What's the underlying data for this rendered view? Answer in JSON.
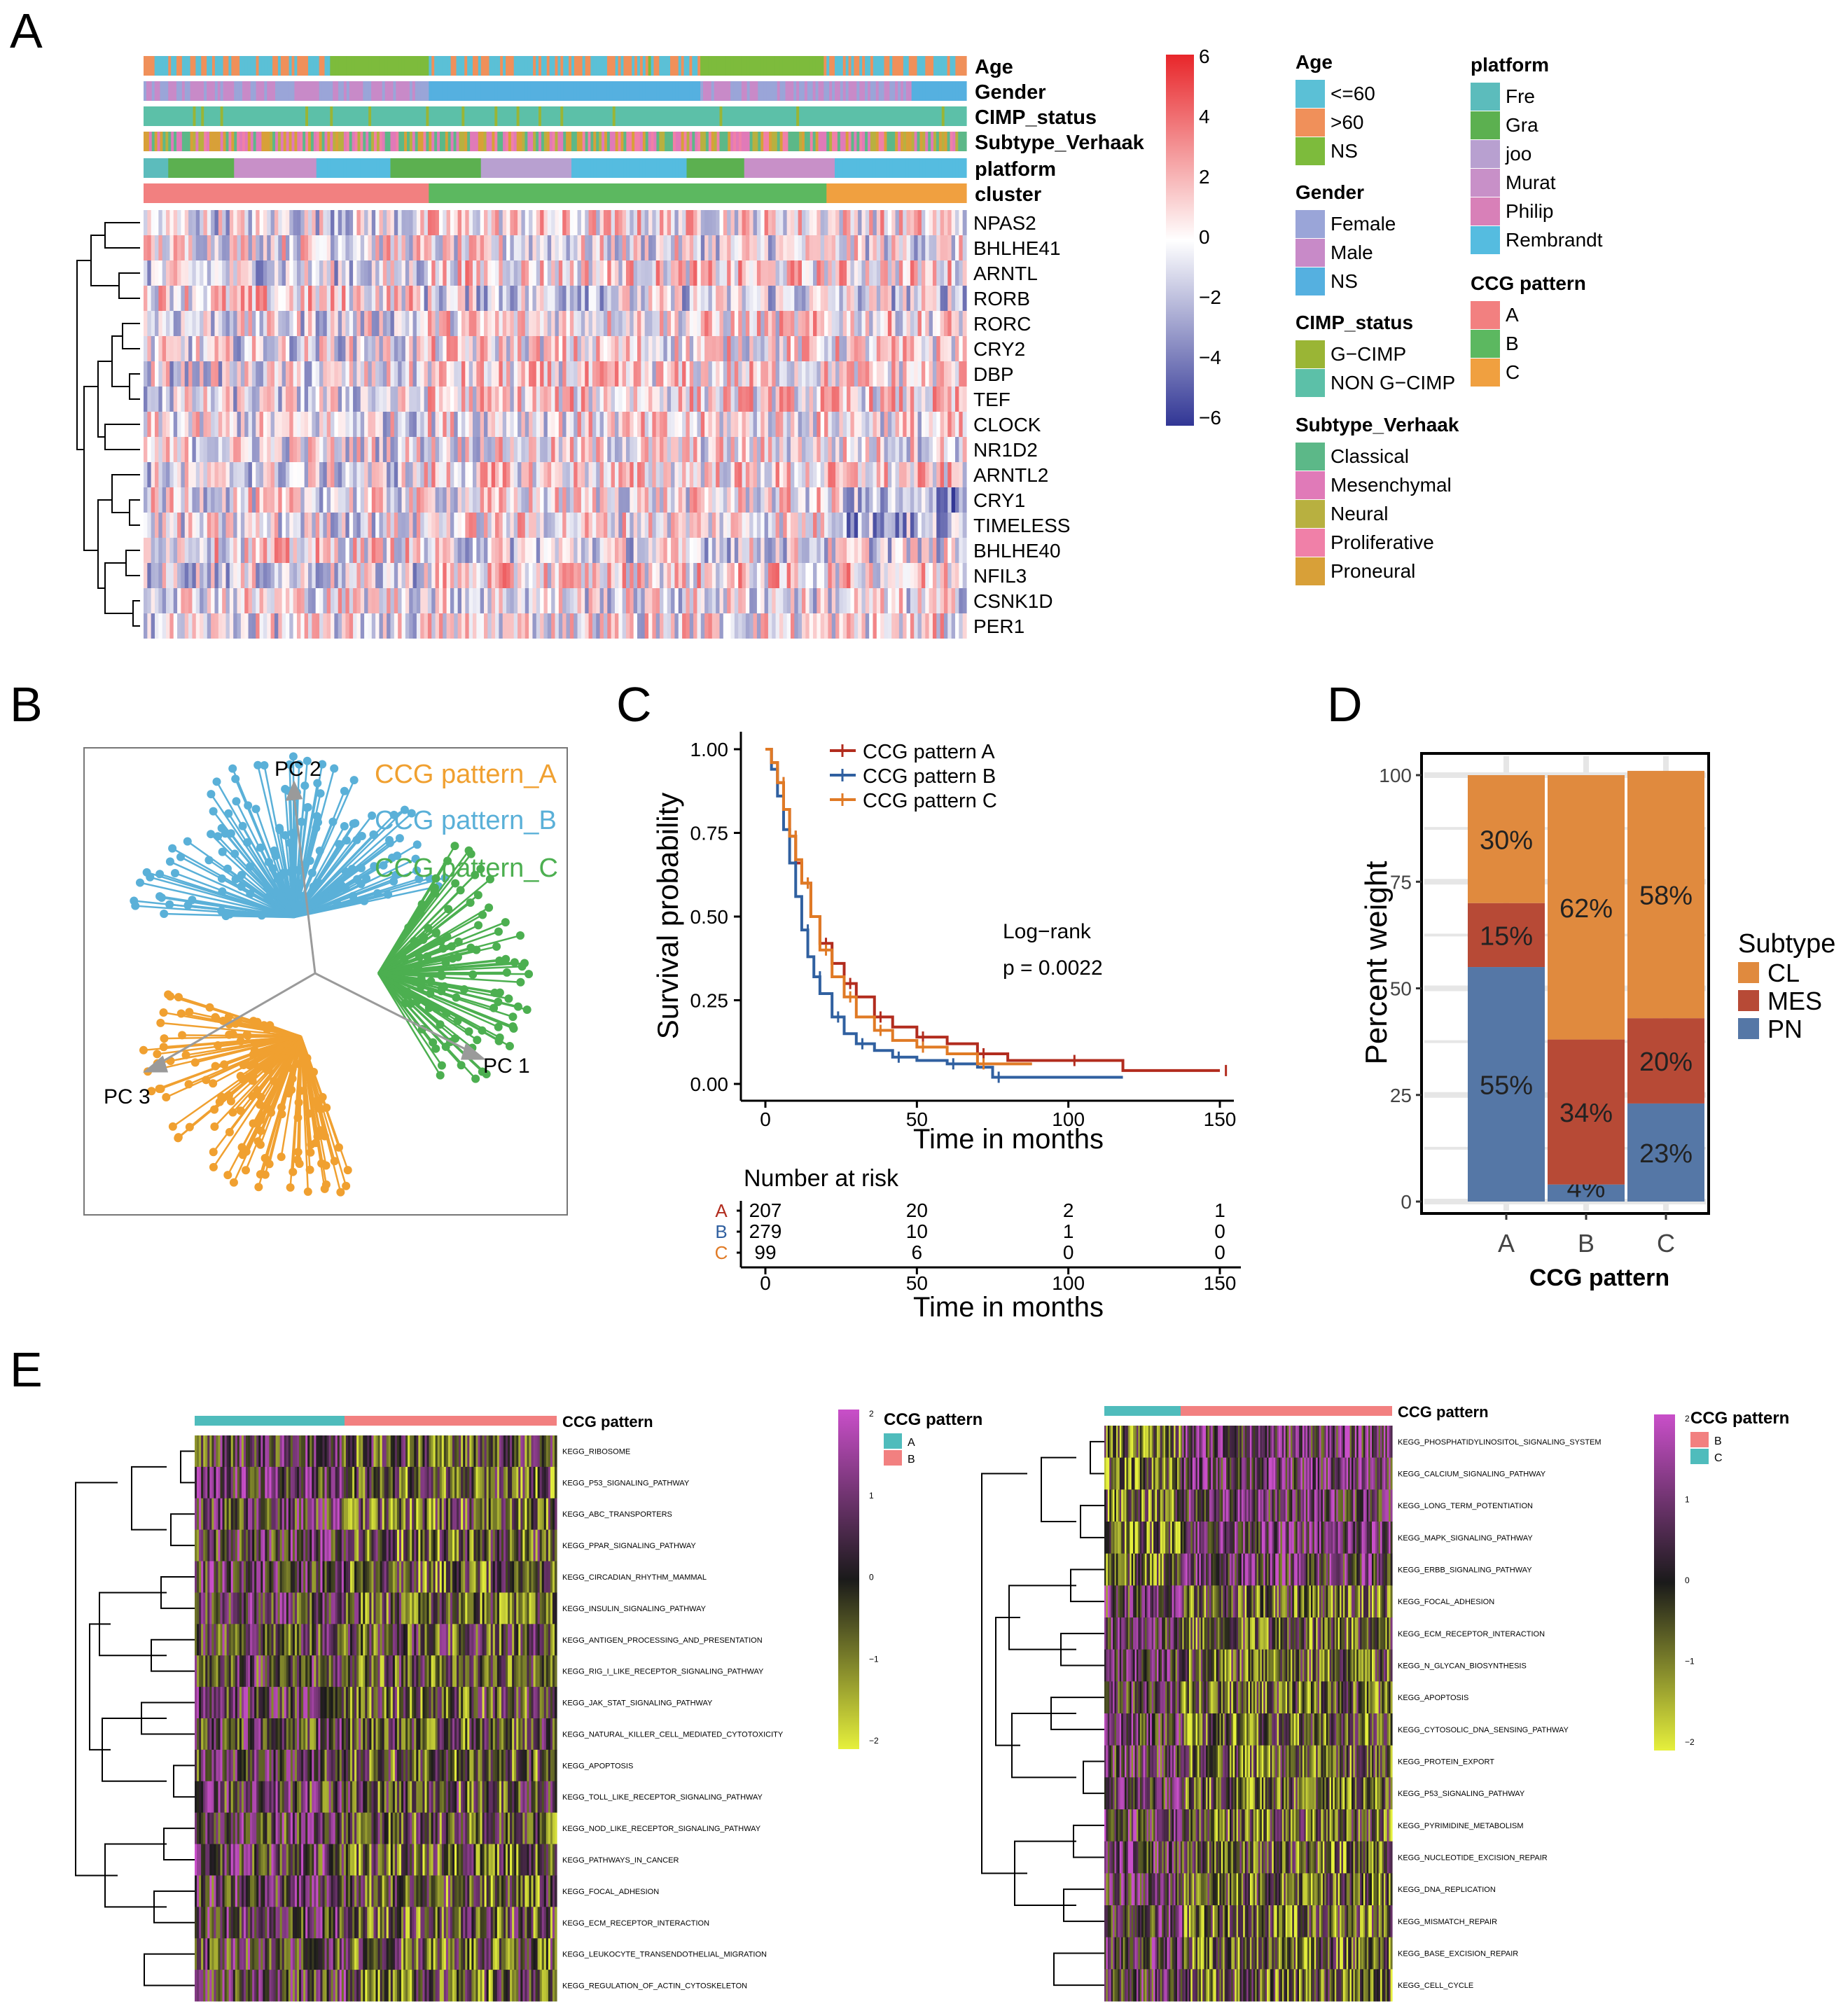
{
  "panel_labels": [
    "A",
    "B",
    "C",
    "D",
    "E"
  ],
  "colors": {
    "hm_low": "#313695",
    "hm_mid": "#ffffff",
    "hm_high": "#e8262a",
    "gsva_low": "#e6f03c",
    "gsva_mid": "#1a1a1a",
    "gsva_high": "#c94fc9",
    "teal": "#4fbcbc",
    "salmon": "#f28080",
    "pattern_A": "#f0a030",
    "pattern_B": "#5ab0d8",
    "pattern_C": "#4caf50",
    "km_A": "#b22c1e",
    "km_B": "#3060a0",
    "km_C": "#e07a25",
    "CL": "#e08a3e",
    "MES": "#b74a36",
    "PN": "#5577a6"
  },
  "panel_A": {
    "annotation_rows": [
      "Age",
      "Gender",
      "CIMP_status",
      "Subtype_Verhaak",
      "platform",
      "cluster"
    ],
    "genes": [
      "NPAS2",
      "BHLHE41",
      "ARNTL",
      "RORB",
      "RORC",
      "CRY2",
      "DBP",
      "TEF",
      "CLOCK",
      "NR1D2",
      "ARNTL2",
      "CRY1",
      "TIMELESS",
      "BHLHE40",
      "NFIL3",
      "CSNK1D",
      "PER1"
    ],
    "colorbar_ticks": [
      "6",
      "4",
      "2",
      "0",
      "−2",
      "−4",
      "−6"
    ],
    "legends": [
      {
        "title": "Age",
        "items": [
          {
            "label": "<=60",
            "color": "#5bc0d6"
          },
          {
            "label": ">60",
            "color": "#f0905a"
          },
          {
            "label": "NS",
            "color": "#7dbb3c"
          }
        ]
      },
      {
        "title": "Gender",
        "items": [
          {
            "label": "Female",
            "color": "#9aa5d8"
          },
          {
            "label": "Male",
            "color": "#c88ac8"
          },
          {
            "label": "NS",
            "color": "#55b0e0"
          }
        ]
      },
      {
        "title": "CIMP_status",
        "items": [
          {
            "label": "G−CIMP",
            "color": "#9ab535"
          },
          {
            "label": "NON G−CIMP",
            "color": "#5cc0a8"
          }
        ]
      },
      {
        "title": "Subtype_Verhaak",
        "items": [
          {
            "label": "Classical",
            "color": "#5cb888"
          },
          {
            "label": "Mesenchymal",
            "color": "#e07ab8"
          },
          {
            "label": "Neural",
            "color": "#b8b040"
          },
          {
            "label": "Proliferative",
            "color": "#f080a8"
          },
          {
            "label": "Proneural",
            "color": "#d8a038"
          }
        ]
      },
      {
        "title": "platform",
        "items": [
          {
            "label": "Fre",
            "color": "#5cbcbc"
          },
          {
            "label": "Gra",
            "color": "#5cb050"
          },
          {
            "label": "joo",
            "color": "#b8a0d0"
          },
          {
            "label": "Murat",
            "color": "#c890c8"
          },
          {
            "label": "Philip",
            "color": "#d880b8"
          },
          {
            "label": "Rembrandt",
            "color": "#55bce0"
          }
        ]
      },
      {
        "title": "CCG pattern",
        "items": [
          {
            "label": "A",
            "color": "#f28080"
          },
          {
            "label": "B",
            "color": "#5cb860"
          },
          {
            "label": "C",
            "color": "#f0a040"
          }
        ]
      }
    ]
  },
  "panel_B": {
    "legend": [
      "CCG pattern_A",
      "CCG pattern_B",
      "CCG pattern_C"
    ],
    "axes": [
      "PC 2",
      "PC 1",
      "PC 3"
    ]
  },
  "panel_C": {
    "chart_data": {
      "type": "line",
      "title": "",
      "xlabel": "Time in months",
      "ylabel": "Survival probability",
      "xlim": [
        0,
        150
      ],
      "ylim": [
        0,
        1
      ],
      "x_ticks": [
        "0",
        "50",
        "100",
        "150"
      ],
      "y_ticks": [
        "0.00",
        "0.25",
        "0.50",
        "0.75",
        "1.00"
      ],
      "series": [
        {
          "name": "CCG pattern A",
          "x": [
            0,
            2,
            4,
            6,
            8,
            10,
            12,
            15,
            18,
            22,
            26,
            30,
            36,
            42,
            50,
            60,
            70,
            80,
            100,
            118,
            150
          ],
          "y": [
            1.0,
            0.96,
            0.9,
            0.82,
            0.74,
            0.66,
            0.6,
            0.5,
            0.42,
            0.36,
            0.3,
            0.26,
            0.2,
            0.17,
            0.14,
            0.12,
            0.09,
            0.07,
            0.07,
            0.04,
            0.04
          ]
        },
        {
          "name": "CCG pattern B",
          "x": [
            0,
            2,
            4,
            6,
            8,
            10,
            12,
            14,
            16,
            18,
            22,
            26,
            30,
            36,
            42,
            50,
            60,
            70,
            75,
            118
          ],
          "y": [
            1.0,
            0.94,
            0.86,
            0.76,
            0.66,
            0.56,
            0.46,
            0.38,
            0.32,
            0.27,
            0.2,
            0.15,
            0.12,
            0.1,
            0.08,
            0.07,
            0.06,
            0.05,
            0.02,
            0.02
          ]
        },
        {
          "name": "CCG pattern C",
          "x": [
            0,
            2,
            4,
            6,
            8,
            10,
            12,
            15,
            18,
            22,
            26,
            30,
            36,
            42,
            50,
            60,
            70,
            88
          ],
          "y": [
            1.0,
            0.96,
            0.9,
            0.82,
            0.74,
            0.67,
            0.6,
            0.5,
            0.4,
            0.32,
            0.26,
            0.2,
            0.16,
            0.13,
            0.11,
            0.09,
            0.06,
            0.06
          ]
        }
      ],
      "annotation": [
        "Log−rank",
        "p = 0.0022"
      ]
    },
    "risk_table": {
      "title": "Number at risk",
      "rows": [
        {
          "group": "A",
          "values": [
            "207",
            "20",
            "2",
            "1"
          ]
        },
        {
          "group": "B",
          "values": [
            "279",
            "10",
            "1",
            "0"
          ]
        },
        {
          "group": "C",
          "values": [
            "99",
            "6",
            "0",
            "0"
          ]
        }
      ],
      "x_ticks": [
        "0",
        "50",
        "100",
        "150"
      ],
      "xlabel": "Time in months"
    }
  },
  "panel_D": {
    "chart_data": {
      "type": "bar",
      "stacked": true,
      "categories": [
        "A",
        "B",
        "C"
      ],
      "series": [
        {
          "name": "PN",
          "values": [
            55,
            4,
            23
          ],
          "labels": [
            "55%",
            "4%",
            "23%"
          ]
        },
        {
          "name": "MES",
          "values": [
            15,
            34,
            20
          ],
          "labels": [
            "15%",
            "34%",
            "20%"
          ]
        },
        {
          "name": "CL",
          "values": [
            30,
            62,
            58
          ],
          "labels": [
            "30%",
            "62%",
            "58%"
          ]
        }
      ],
      "xlabel": "CCG pattern",
      "ylabel": "Percent weight",
      "ylim": [
        0,
        100
      ],
      "y_ticks": [
        "0",
        "25",
        "50",
        "75",
        "100"
      ],
      "legend_title": "Subtype",
      "legend": [
        "CL",
        "MES",
        "PN"
      ]
    }
  },
  "panel_E": {
    "left": {
      "annotation_label": "CCG pattern",
      "legend_title": "CCG pattern",
      "legend": [
        {
          "label": "A",
          "color": "#4fbcbc"
        },
        {
          "label": "B",
          "color": "#f28080"
        }
      ],
      "colorbar_ticks": [
        "2",
        "1",
        "0",
        "−1",
        "−2"
      ],
      "pathways": [
        "KEGG_RIBOSOME",
        "KEGG_P53_SIGNALING_PATHWAY",
        "KEGG_ABC_TRANSPORTERS",
        "KEGG_PPAR_SIGNALING_PATHWAY",
        "KEGG_CIRCADIAN_RHYTHM_MAMMAL",
        "KEGG_INSULIN_SIGNALING_PATHWAY",
        "KEGG_ANTIGEN_PROCESSING_AND_PRESENTATION",
        "KEGG_RIG_I_LIKE_RECEPTOR_SIGNALING_PATHWAY",
        "KEGG_JAK_STAT_SIGNALING_PATHWAY",
        "KEGG_NATURAL_KILLER_CELL_MEDIATED_CYTOTOXICITY",
        "KEGG_APOPTOSIS",
        "KEGG_TOLL_LIKE_RECEPTOR_SIGNALING_PATHWAY",
        "KEGG_NOD_LIKE_RECEPTOR_SIGNALING_PATHWAY",
        "KEGG_PATHWAYS_IN_CANCER",
        "KEGG_FOCAL_ADHESION",
        "KEGG_ECM_RECEPTOR_INTERACTION",
        "KEGG_LEUKOCYTE_TRANSENDOTHELIAL_MIGRATION",
        "KEGG_REGULATION_OF_ACTIN_CYTOSKELETON"
      ]
    },
    "right": {
      "annotation_label": "CCG pattern",
      "legend_title": "CCG pattern",
      "legend": [
        {
          "label": "B",
          "color": "#f28080"
        },
        {
          "label": "C",
          "color": "#4fbcbc"
        }
      ],
      "colorbar_ticks": [
        "2",
        "1",
        "0",
        "−1",
        "−2"
      ],
      "pathways": [
        "KEGG_PHOSPHATIDYLINOSITOL_SIGNALING_SYSTEM",
        "KEGG_CALCIUM_SIGNALING_PATHWAY",
        "KEGG_LONG_TERM_POTENTIATION",
        "KEGG_MAPK_SIGNALING_PATHWAY",
        "KEGG_ERBB_SIGNALING_PATHWAY",
        "KEGG_FOCAL_ADHESION",
        "KEGG_ECM_RECEPTOR_INTERACTION",
        "KEGG_N_GLYCAN_BIOSYNTHESIS",
        "KEGG_APOPTOSIS",
        "KEGG_CYTOSOLIC_DNA_SENSING_PATHWAY",
        "KEGG_PROTEIN_EXPORT",
        "KEGG_P53_SIGNALING_PATHWAY",
        "KEGG_PYRIMIDINE_METABOLISM",
        "KEGG_NUCLEOTIDE_EXCISION_REPAIR",
        "KEGG_DNA_REPLICATION",
        "KEGG_MISMATCH_REPAIR",
        "KEGG_BASE_EXCISION_REPAIR",
        "KEGG_CELL_CYCLE"
      ]
    }
  }
}
